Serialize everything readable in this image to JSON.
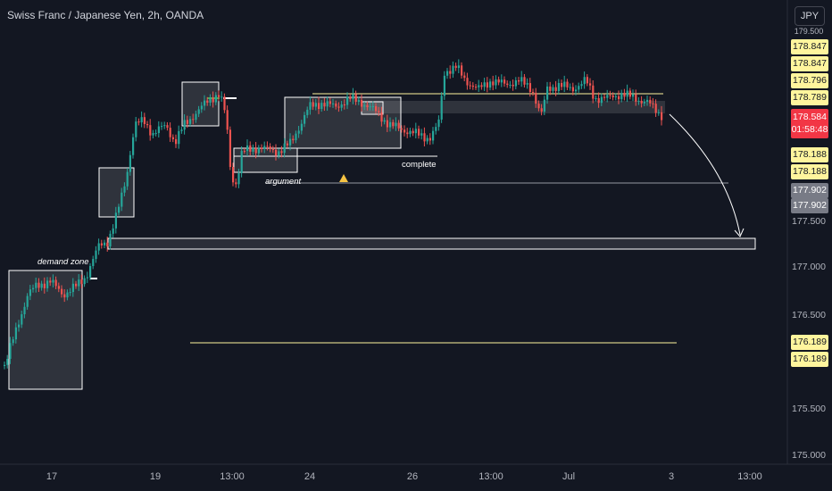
{
  "header": {
    "title": "Swiss Franc / Japanese Yen, 2h, OANDA",
    "currency": "JPY"
  },
  "price_axis": {
    "ticks": [
      "177.500",
      "177.000",
      "176.500",
      "175.500",
      "175.000"
    ],
    "top_partial": "179.500"
  },
  "price_labels": [
    {
      "value": "178.847",
      "bg": "#fff59d",
      "fg": "#131722"
    },
    {
      "value": "178.847",
      "bg": "#fff59d",
      "fg": "#131722"
    },
    {
      "value": "178.796",
      "bg": "#fff59d",
      "fg": "#131722"
    },
    {
      "value": "178.789",
      "bg": "#fff59d",
      "fg": "#131722"
    },
    {
      "value": "178.188",
      "bg": "#fff59d",
      "fg": "#131722"
    },
    {
      "value": "178.188",
      "bg": "#fff59d",
      "fg": "#131722"
    },
    {
      "value": "177.902",
      "bg": "#787b86",
      "fg": "#ffffff"
    },
    {
      "value": "177.902",
      "bg": "#787b86",
      "fg": "#ffffff"
    },
    {
      "value": "176.189",
      "bg": "#fff59d",
      "fg": "#131722"
    },
    {
      "value": "176.189",
      "bg": "#fff59d",
      "fg": "#131722"
    }
  ],
  "current_price": {
    "value": "178.584",
    "countdown": "01:58:48",
    "bg": "#f23645"
  },
  "time_axis": [
    "17",
    "19",
    "13:00",
    "24",
    "26",
    "13:00",
    "Jul",
    "3",
    "13:00"
  ],
  "annotations": {
    "demand_zone": "demand zone",
    "argument": "argument",
    "complete": "complete"
  },
  "colors": {
    "up": "#26a69a",
    "down": "#ef5350",
    "bg": "#131722",
    "accent_line": "#fff59d"
  }
}
